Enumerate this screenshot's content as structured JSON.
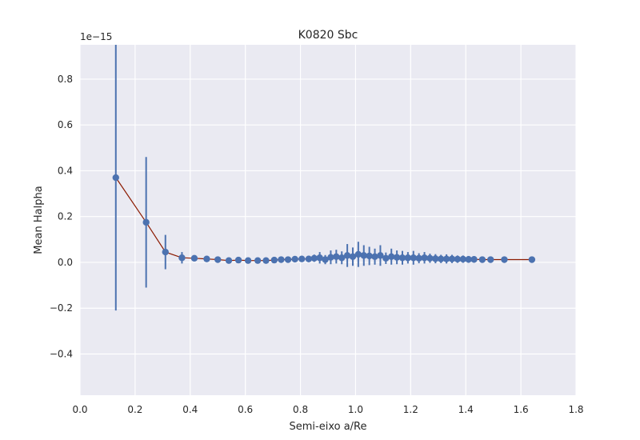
{
  "chart_data": {
    "type": "scatter",
    "title": "K0820 Sbc",
    "xlabel": "Semi-eixo a/Re",
    "ylabel": "Mean Halpha",
    "y_offset_label": "1e−15",
    "xlim": [
      0.0,
      1.8
    ],
    "ylim": [
      -0.58,
      0.95
    ],
    "x_ticks": [
      0.0,
      0.2,
      0.4,
      0.6,
      0.8,
      1.0,
      1.2,
      1.4,
      1.6,
      1.8
    ],
    "x_tick_labels": [
      "0.0",
      "0.2",
      "0.4",
      "0.6",
      "0.8",
      "1.0",
      "1.2",
      "1.4",
      "1.6",
      "1.8"
    ],
    "y_ticks": [
      -0.4,
      -0.2,
      0.0,
      0.2,
      0.4,
      0.6,
      0.8
    ],
    "y_tick_labels": [
      "−0.4",
      "−0.2",
      "0.0",
      "0.2",
      "0.4",
      "0.6",
      "0.8"
    ],
    "grid": true,
    "colors": {
      "background": "#eaeaf2",
      "grid": "#ffffff",
      "marker": "#4c72b0",
      "line": "#8b1a00"
    },
    "series": [
      {
        "x": [
          0.13,
          0.24,
          0.31,
          0.37,
          0.415,
          0.46,
          0.5,
          0.54,
          0.575,
          0.61,
          0.645,
          0.675,
          0.705,
          0.73,
          0.755,
          0.78,
          0.805,
          0.83,
          0.85,
          0.87,
          0.89,
          0.91,
          0.93,
          0.95,
          0.97,
          0.99,
          1.01,
          1.03,
          1.05,
          1.07,
          1.09,
          1.11,
          1.13,
          1.15,
          1.17,
          1.19,
          1.21,
          1.23,
          1.25,
          1.27,
          1.29,
          1.31,
          1.33,
          1.35,
          1.37,
          1.39,
          1.41,
          1.43,
          1.46,
          1.49,
          1.54,
          1.64
        ],
        "y": [
          0.37,
          0.175,
          0.045,
          0.02,
          0.018,
          0.015,
          0.012,
          0.008,
          0.01,
          0.008,
          0.008,
          0.008,
          0.01,
          0.012,
          0.012,
          0.014,
          0.015,
          0.015,
          0.018,
          0.02,
          0.012,
          0.022,
          0.025,
          0.02,
          0.03,
          0.025,
          0.035,
          0.03,
          0.028,
          0.025,
          0.03,
          0.018,
          0.025,
          0.022,
          0.02,
          0.02,
          0.02,
          0.018,
          0.02,
          0.018,
          0.016,
          0.015,
          0.015,
          0.015,
          0.014,
          0.014,
          0.013,
          0.013,
          0.012,
          0.012,
          0.012,
          0.012
        ],
        "yerr": [
          0.58,
          0.285,
          0.075,
          0.025,
          0.01,
          0.008,
          0.006,
          0.006,
          0.006,
          0.006,
          0.006,
          0.006,
          0.008,
          0.008,
          0.01,
          0.012,
          0.012,
          0.014,
          0.016,
          0.025,
          0.02,
          0.03,
          0.03,
          0.028,
          0.05,
          0.04,
          0.055,
          0.045,
          0.04,
          0.035,
          0.045,
          0.025,
          0.035,
          0.03,
          0.03,
          0.025,
          0.03,
          0.022,
          0.025,
          0.02,
          0.02,
          0.018,
          0.02,
          0.018,
          0.016,
          0.016,
          0.015,
          0.014,
          0.01,
          0.008,
          0.006,
          0.006
        ]
      }
    ]
  }
}
